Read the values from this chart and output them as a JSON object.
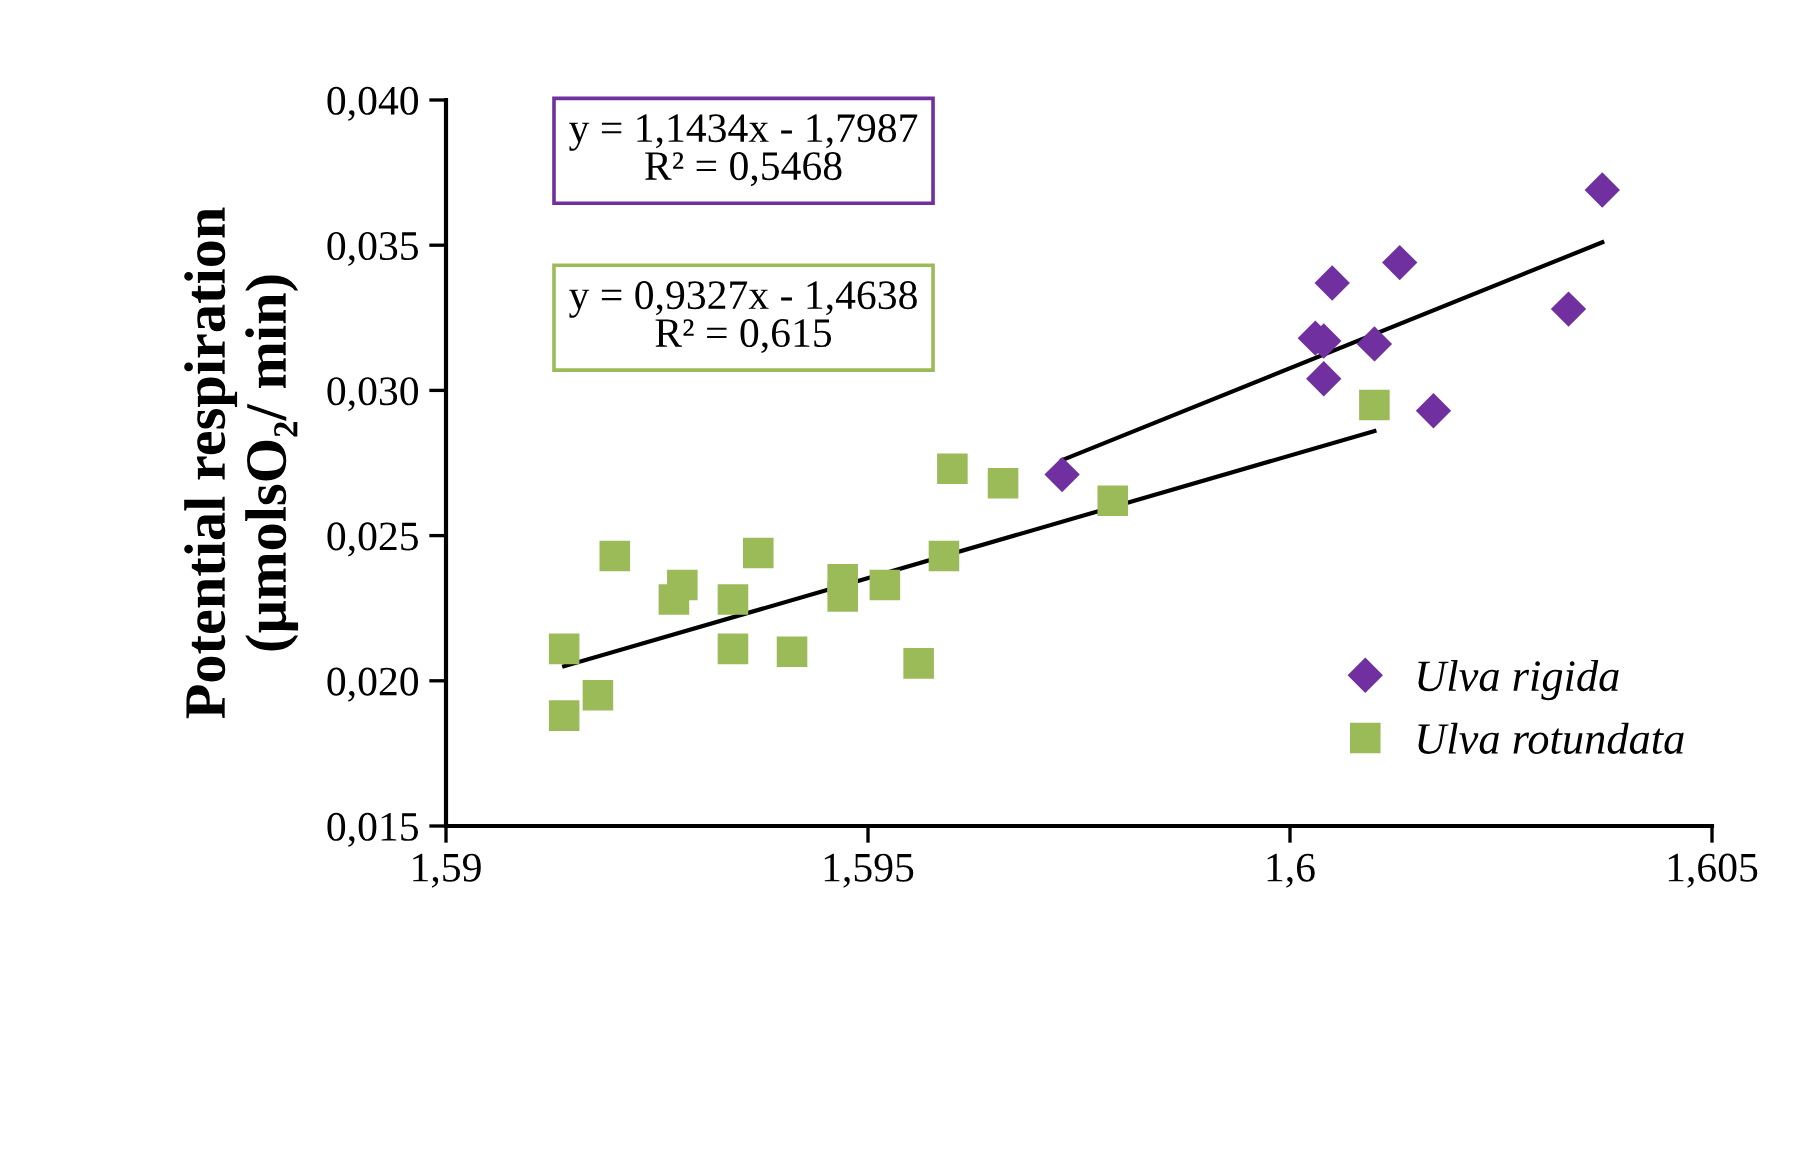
{
  "chart_data": {
    "type": "scatter",
    "ylabel": "Potential respiration\n(µmolsO₂/ min)",
    "xlim": [
      1.59,
      1.605
    ],
    "ylim": [
      0.015,
      0.04
    ],
    "xticks": [
      {
        "value": 1.59,
        "label": "1,59"
      },
      {
        "value": 1.595,
        "label": "1,595"
      },
      {
        "value": 1.6,
        "label": "1,6"
      },
      {
        "value": 1.605,
        "label": "1,605"
      }
    ],
    "yticks": [
      {
        "value": 0.015,
        "label": "0,015"
      },
      {
        "value": 0.02,
        "label": "0,020"
      },
      {
        "value": 0.025,
        "label": "0,025"
      },
      {
        "value": 0.03,
        "label": "0,030"
      },
      {
        "value": 0.035,
        "label": "0,035"
      },
      {
        "value": 0.04,
        "label": "0,040"
      }
    ],
    "grid": false,
    "legend": "lower right",
    "annotations": [
      "y = 1,1434x - 1,7987\nR² = 0,5468",
      "y = 0,9327x - 1,4638\nR² = 0,615"
    ],
    "series": [
      {
        "name": "Ulva rigida",
        "color": "#7030a0",
        "marker": "diamond",
        "x": [
          1.5973,
          1.6005,
          1.6013,
          1.6003,
          1.6004,
          1.601,
          1.6004,
          1.6017,
          1.6033,
          1.6037
        ],
        "values": [
          0.0271,
          0.0337,
          0.0344,
          0.0318,
          0.0317,
          0.0316,
          0.0304,
          0.0293,
          0.0328,
          0.0369
        ]
      },
      {
        "name": "Ulva rotundata",
        "color": "#9bbb59",
        "marker": "square",
        "x": [
          1.5914,
          1.5914,
          1.5918,
          1.592,
          1.5927,
          1.5928,
          1.5934,
          1.5934,
          1.5937,
          1.5941,
          1.5947,
          1.5947,
          1.5952,
          1.5956,
          1.596,
          1.5959,
          1.5966,
          1.5979,
          1.601
        ],
        "values": [
          0.0211,
          0.0188,
          0.0195,
          0.0243,
          0.0228,
          0.0233,
          0.0228,
          0.0211,
          0.0244,
          0.021,
          0.0235,
          0.0229,
          0.0233,
          0.0206,
          0.0273,
          0.0243,
          0.0268,
          0.0262,
          0.0295
        ]
      },
      {
        "type": "line",
        "color": "#000000",
        "marker": "none",
        "x": [
          1.5973,
          1.6037
        ],
        "values": [
          0.0276,
          0.0351
        ]
      },
      {
        "type": "line",
        "color": "#000000",
        "marker": "none",
        "x": [
          1.5914,
          1.601
        ],
        "values": [
          0.0205,
          0.0286
        ]
      }
    ]
  }
}
